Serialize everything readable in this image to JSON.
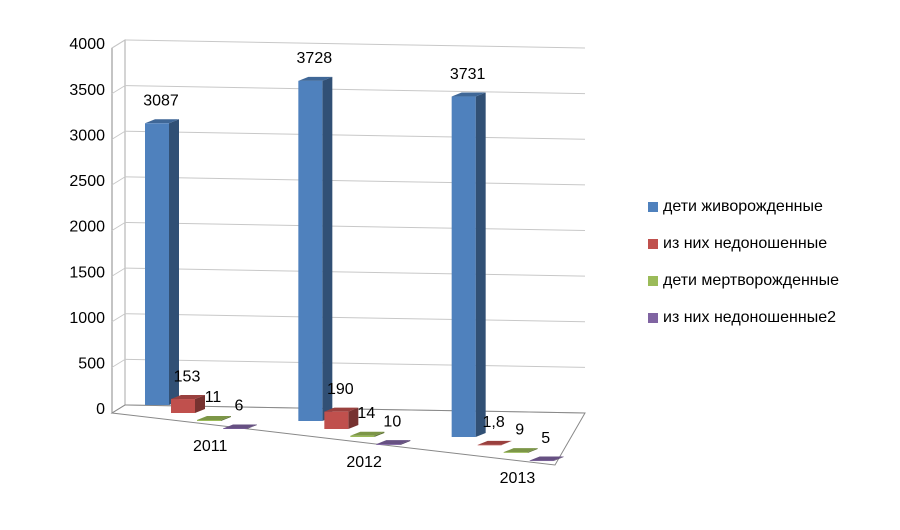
{
  "chart_data": {
    "type": "bar3d",
    "categories": [
      "2011",
      "2012",
      "2013"
    ],
    "series": [
      {
        "name": "дети живорожденные",
        "color": "#4f81bd",
        "values": [
          3087,
          3728,
          3731
        ]
      },
      {
        "name": "из них недоношенные",
        "color": "#c0504d",
        "values": [
          153,
          190,
          1.8
        ],
        "value_labels": [
          "153",
          "190",
          "1,8"
        ]
      },
      {
        "name": "дети мертворожденные",
        "color": "#9bbb59",
        "values": [
          11,
          14,
          9
        ]
      },
      {
        "name": "из них недоношенные2",
        "color": "#8064a2",
        "values": [
          6,
          10,
          5
        ]
      }
    ],
    "ylim": [
      0,
      4000
    ],
    "yticks": [
      0,
      500,
      1000,
      1500,
      2000,
      2500,
      3000,
      3500,
      4000
    ],
    "grid": true,
    "legend": "right"
  }
}
